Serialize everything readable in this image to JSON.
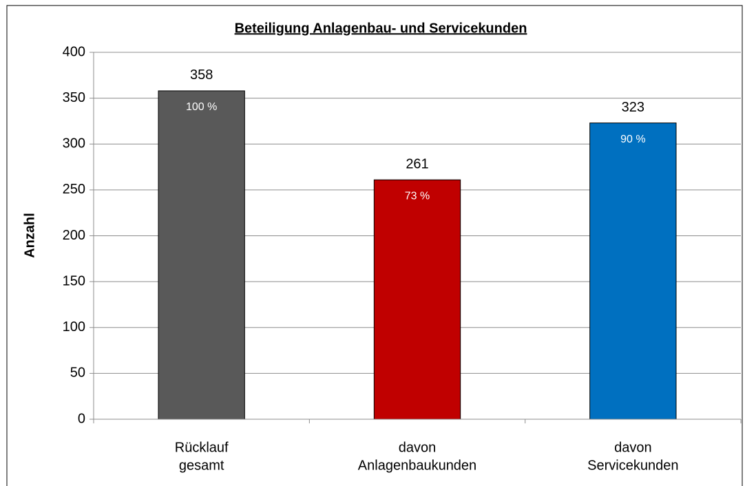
{
  "chart_data": {
    "type": "bar",
    "title": "Beteiligung Anlagenbau- und Servicekunden",
    "y_label": "Anzahl",
    "categories": [
      [
        "Rücklauf",
        "gesamt"
      ],
      [
        "davon",
        "Anlagenbaukunden"
      ],
      [
        "davon",
        "Servicekunden"
      ]
    ],
    "values": [
      358,
      261,
      323
    ],
    "colors": [
      "#595959",
      "#c00000",
      "#0070c0"
    ],
    "shares": {
      "values": [
        100,
        73,
        90
      ],
      "value_labels": [
        "100 %",
        "73 %",
        "90 %"
      ]
    },
    "ylim": [
      0,
      400
    ],
    "yticks": [
      0,
      50,
      100,
      150,
      200,
      250,
      300,
      350,
      400
    ],
    "grid": true
  }
}
